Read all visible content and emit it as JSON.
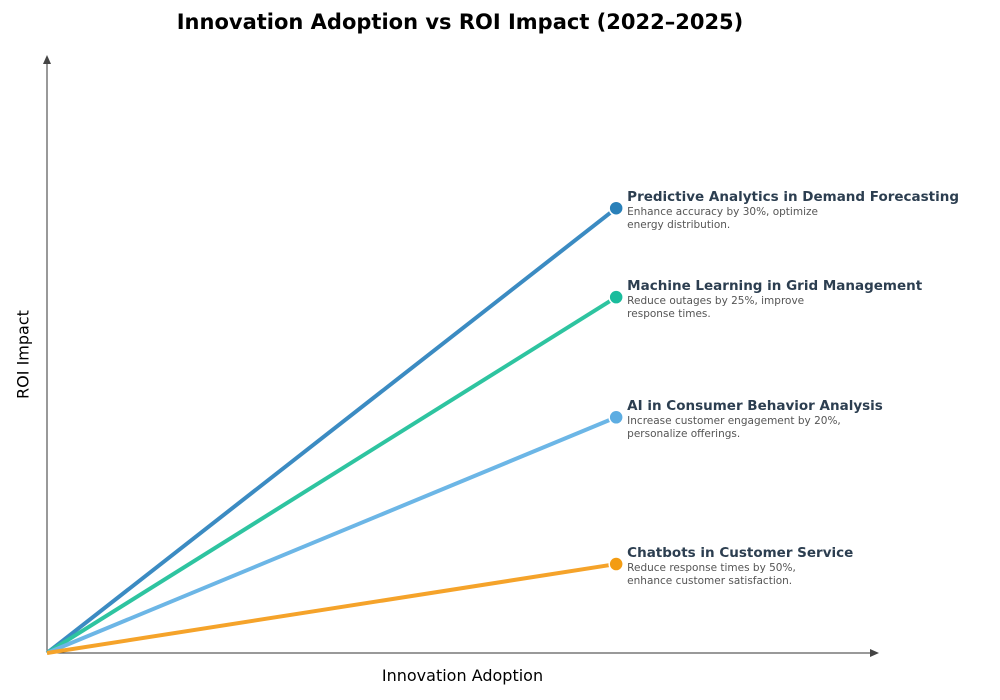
{
  "chart_data": {
    "type": "line",
    "title": "Innovation Adoption vs ROI Impact (2022–2025)",
    "xlabel": "Innovation Adoption",
    "ylabel": "ROI Impact",
    "xlim": [
      0,
      1.46
    ],
    "ylim": [
      0,
      1.34
    ],
    "grid": false,
    "series": [
      {
        "name": "Predictive Analytics in Demand Forecasting",
        "description": "Enhance accuracy by 30%, optimize energy distribution.",
        "x": [
          0,
          1
        ],
        "y": [
          0,
          1.0
        ],
        "color": "#3b8bc2",
        "marker_color": "#2980b9"
      },
      {
        "name": "Machine Learning in Grid Management",
        "description": "Reduce outages by 25%, improve response times.",
        "x": [
          0,
          1
        ],
        "y": [
          0,
          0.8
        ],
        "color": "#2ec4a0",
        "marker_color": "#1abc9c"
      },
      {
        "name": "AI in Consumer Behavior Analysis",
        "description": "Increase customer engagement by 20%, personalize offerings.",
        "x": [
          0,
          1
        ],
        "y": [
          0,
          0.53
        ],
        "color": "#6cb6e6",
        "marker_color": "#5dade2"
      },
      {
        "name": "Chatbots in Customer Service",
        "description": "Reduce response times by 50%, enhance customer satisfaction.",
        "x": [
          0,
          1
        ],
        "y": [
          0,
          0.2
        ],
        "color": "#f5a32a",
        "marker_color": "#f39c12"
      }
    ]
  }
}
